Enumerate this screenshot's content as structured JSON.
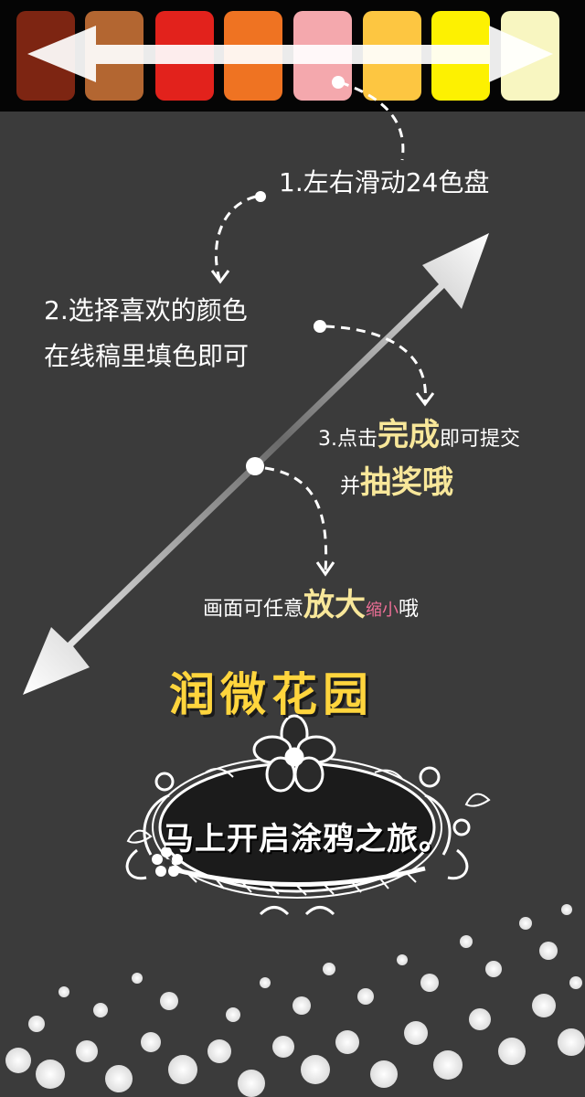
{
  "palette": {
    "swatches": [
      "#7d2512",
      "#b36631",
      "#e2221c",
      "#ef7322",
      "#f4a8ad",
      "#fdc641",
      "#fdf101",
      "#f8f6c1"
    ]
  },
  "instructions": {
    "step1": "1.左右滑动24色盘",
    "step2_line1": "2.选择喜欢的颜色",
    "step2_line2": "在线稿里填色即可",
    "step3_prefix": "3.点击",
    "step3_highlight": "完成",
    "step3_suffix": "即可提交",
    "step3_line2_prefix": "并",
    "step3_line2_highlight": "抽奖哦",
    "zoom_prefix": "画面可任意",
    "zoom_highlight_big": "放大",
    "zoom_highlight_small": "缩小",
    "zoom_suffix": "哦"
  },
  "brand": {
    "title": "润微花园"
  },
  "banner": {
    "text": "马上开启涂鸦之旅。"
  }
}
